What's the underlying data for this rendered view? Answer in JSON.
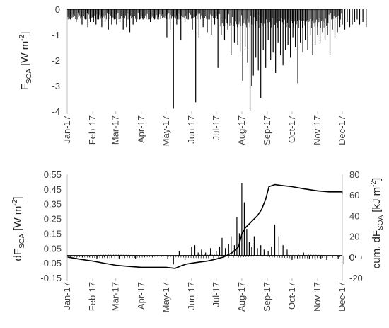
{
  "chart_data": [
    {
      "type": "bar",
      "ylabel": {
        "main": "F",
        "sub": "SOA",
        "unit": " [W m",
        "sup": "-2",
        "end": "]"
      },
      "xlabel": "",
      "x_tick_labels": [
        "Jan-17",
        "Feb-17",
        "Mar-17",
        "Apr-17",
        "May-17",
        "Jun-17",
        "Jul-17",
        "Aug-17",
        "Sep-17",
        "Oct-17",
        "Nov-17",
        "Dec-17"
      ],
      "ylim": [
        -4,
        0
      ],
      "yticks": [
        0,
        -1,
        -2,
        -3,
        -4
      ],
      "grid": false,
      "series": [
        {
          "x": [
            "2017-01-02",
            "2017-01-05",
            "2017-01-09",
            "2017-01-12",
            "2017-01-15",
            "2017-01-19",
            "2017-01-23",
            "2017-01-26",
            "2017-01-29",
            "2017-02-02",
            "2017-02-05",
            "2017-02-08",
            "2017-02-12",
            "2017-02-16",
            "2017-02-20",
            "2017-02-24",
            "2017-02-27",
            "2017-03-02",
            "2017-03-06",
            "2017-03-10",
            "2017-03-14",
            "2017-03-18",
            "2017-03-22",
            "2017-03-26",
            "2017-03-30",
            "2017-04-03",
            "2017-04-07",
            "2017-04-12",
            "2017-04-17",
            "2017-04-22",
            "2017-04-27",
            "2017-05-02",
            "2017-05-06",
            "2017-05-10",
            "2017-05-14",
            "2017-05-19",
            "2017-05-24",
            "2017-05-28",
            "2017-06-02",
            "2017-06-06",
            "2017-06-10",
            "2017-06-15",
            "2017-06-20",
            "2017-06-25",
            "2017-06-29",
            "2017-07-03",
            "2017-07-07",
            "2017-07-11",
            "2017-07-15",
            "2017-07-19",
            "2017-07-23",
            "2017-07-27",
            "2017-07-30",
            "2017-08-02",
            "2017-08-05",
            "2017-08-08",
            "2017-08-11",
            "2017-08-13",
            "2017-08-15",
            "2017-08-18",
            "2017-08-21",
            "2017-08-24",
            "2017-08-27",
            "2017-08-30",
            "2017-09-02",
            "2017-09-05",
            "2017-09-08",
            "2017-09-11",
            "2017-09-14",
            "2017-09-17",
            "2017-09-20",
            "2017-09-23",
            "2017-09-26",
            "2017-09-29",
            "2017-10-02",
            "2017-10-05",
            "2017-10-08",
            "2017-10-11",
            "2017-10-14",
            "2017-10-17",
            "2017-10-20",
            "2017-10-23",
            "2017-10-26",
            "2017-10-29",
            "2017-11-01",
            "2017-11-04",
            "2017-11-07",
            "2017-11-10",
            "2017-11-13",
            "2017-11-16",
            "2017-11-19",
            "2017-11-22",
            "2017-11-25",
            "2017-11-28",
            "2017-12-01",
            "2017-12-04",
            "2017-12-07",
            "2017-12-10",
            "2017-12-13",
            "2017-12-16",
            "2017-12-19",
            "2017-12-22",
            "2017-12-26",
            "2017-12-30"
          ],
          "values": [
            -0.3,
            -0.4,
            -0.2,
            -0.5,
            -0.3,
            -0.6,
            -0.4,
            -0.7,
            -0.5,
            -0.5,
            -0.6,
            -0.4,
            -0.7,
            -0.5,
            -0.8,
            -0.6,
            -0.4,
            -0.6,
            -0.5,
            -0.8,
            -0.7,
            -0.9,
            -0.6,
            -0.5,
            -0.4,
            -0.4,
            -0.3,
            -0.5,
            -0.4,
            -0.3,
            -0.2,
            -1.1,
            -0.8,
            -3.9,
            -0.6,
            -1.2,
            -0.5,
            -0.4,
            -0.8,
            -3.65,
            -1.1,
            -0.7,
            -0.9,
            -1.0,
            -0.6,
            -2.3,
            -1.0,
            -1.2,
            -0.8,
            -1.8,
            -1.3,
            -1.4,
            -1.7,
            -2.8,
            -1.5,
            -2.1,
            -4.0,
            -3.0,
            -2.6,
            -1.9,
            -2.4,
            -3.5,
            -1.6,
            -2.3,
            -1.2,
            -2.0,
            -1.7,
            -2.5,
            -1.3,
            -1.8,
            -2.2,
            -1.6,
            -1.4,
            -1.9,
            -1.1,
            -1.5,
            -2.9,
            -1.3,
            -1.7,
            -1.2,
            -1.6,
            -1.0,
            -1.8,
            -1.4,
            -1.0,
            -1.3,
            -0.9,
            -1.2,
            -1.0,
            -1.8,
            -0.8,
            -1.1,
            -0.9,
            -0.7,
            -0.6,
            -0.8,
            -0.5,
            -0.7,
            -0.6,
            -0.5,
            -0.4,
            -0.6,
            -0.5,
            -0.7
          ]
        }
      ]
    },
    {
      "type": "bar+line",
      "ylabel_left": {
        "main": "dF",
        "sub": "SOA",
        "unit": " [W m",
        "sup": "-2",
        "end": "]"
      },
      "ylabel_right": {
        "main": "cum. dF",
        "sub": "SOA",
        "unit": " [kJ m",
        "sup": "-2",
        "end": "]"
      },
      "x_tick_labels": [
        "Jan-17",
        "Feb-17",
        "Mar-17",
        "Apr-17",
        "May-17",
        "Jun-17",
        "Jul-17",
        "Aug-17",
        "Sep-17",
        "Oct-17",
        "Nov-17",
        "Dec-17"
      ],
      "ylim_left": [
        -0.15,
        0.55
      ],
      "yticks_left": [
        "0.55",
        "0.45",
        "0.35",
        "0.25",
        "0.15",
        "0.05",
        "-0.05",
        "-0.15"
      ],
      "ylim_right": [
        -20,
        80
      ],
      "yticks_right": [
        "80",
        "60",
        "40",
        "20",
        "0",
        "-20"
      ],
      "grid": false,
      "series": [
        {
          "kind": "bar",
          "x": [
            "2017-01-05",
            "2017-01-12",
            "2017-01-20",
            "2017-01-28",
            "2017-02-06",
            "2017-02-15",
            "2017-02-24",
            "2017-03-05",
            "2017-03-15",
            "2017-03-25",
            "2017-04-05",
            "2017-04-15",
            "2017-04-25",
            "2017-05-03",
            "2017-05-10",
            "2017-05-17",
            "2017-05-24",
            "2017-06-01",
            "2017-06-05",
            "2017-06-09",
            "2017-06-13",
            "2017-06-18",
            "2017-06-24",
            "2017-07-01",
            "2017-07-05",
            "2017-07-08",
            "2017-07-12",
            "2017-07-16",
            "2017-07-19",
            "2017-07-23",
            "2017-07-26",
            "2017-07-29",
            "2017-08-01",
            "2017-08-04",
            "2017-08-07",
            "2017-08-10",
            "2017-08-13",
            "2017-08-16",
            "2017-08-20",
            "2017-08-24",
            "2017-08-28",
            "2017-09-02",
            "2017-09-06",
            "2017-09-10",
            "2017-09-15",
            "2017-09-20",
            "2017-09-25",
            "2017-10-01",
            "2017-10-08",
            "2017-10-15",
            "2017-10-22",
            "2017-10-29",
            "2017-11-05",
            "2017-11-12",
            "2017-11-19",
            "2017-11-26",
            "2017-12-03",
            "2017-12-10",
            "2017-12-17",
            "2017-12-24"
          ],
          "values": [
            -0.01,
            -0.02,
            -0.015,
            -0.01,
            -0.02,
            -0.01,
            -0.015,
            -0.02,
            -0.01,
            -0.02,
            -0.01,
            -0.015,
            -0.01,
            -0.02,
            -0.06,
            0.03,
            -0.03,
            0.06,
            0.07,
            0.02,
            0.04,
            0.02,
            0.05,
            0.03,
            0.06,
            0.12,
            0.05,
            0.08,
            0.13,
            0.07,
            0.26,
            0.15,
            0.49,
            0.36,
            0.18,
            0.09,
            0.06,
            0.13,
            0.05,
            0.07,
            0.04,
            0.03,
            0.06,
            0.21,
            0.13,
            0.07,
            0.04,
            -0.03,
            -0.02,
            0.02,
            -0.02,
            -0.03,
            -0.02,
            -0.03,
            -0.015,
            -0.02,
            -0.06,
            -0.02,
            -0.015,
            -0.02
          ]
        },
        {
          "kind": "line",
          "axis": "right",
          "x": [
            "2017-01-01",
            "2017-01-15",
            "2017-02-01",
            "2017-02-15",
            "2017-03-01",
            "2017-03-15",
            "2017-04-01",
            "2017-04-15",
            "2017-05-01",
            "2017-05-12",
            "2017-05-18",
            "2017-05-25",
            "2017-06-01",
            "2017-06-10",
            "2017-06-20",
            "2017-07-01",
            "2017-07-10",
            "2017-07-20",
            "2017-07-28",
            "2017-08-01",
            "2017-08-05",
            "2017-08-10",
            "2017-08-15",
            "2017-08-20",
            "2017-08-25",
            "2017-08-30",
            "2017-09-03",
            "2017-09-10",
            "2017-09-20",
            "2017-10-01",
            "2017-10-15",
            "2017-11-01",
            "2017-11-15",
            "2017-12-01",
            "2017-12-15",
            "2017-12-31"
          ],
          "values": [
            0,
            -2,
            -4,
            -6,
            -8,
            -9,
            -10,
            -10,
            -10,
            -11,
            -9,
            -7,
            -6,
            -5,
            -4,
            -2,
            0,
            4,
            10,
            22,
            28,
            32,
            36,
            40,
            46,
            56,
            68,
            70,
            69,
            68,
            66,
            64,
            63,
            63,
            62,
            61
          ]
        }
      ]
    }
  ]
}
